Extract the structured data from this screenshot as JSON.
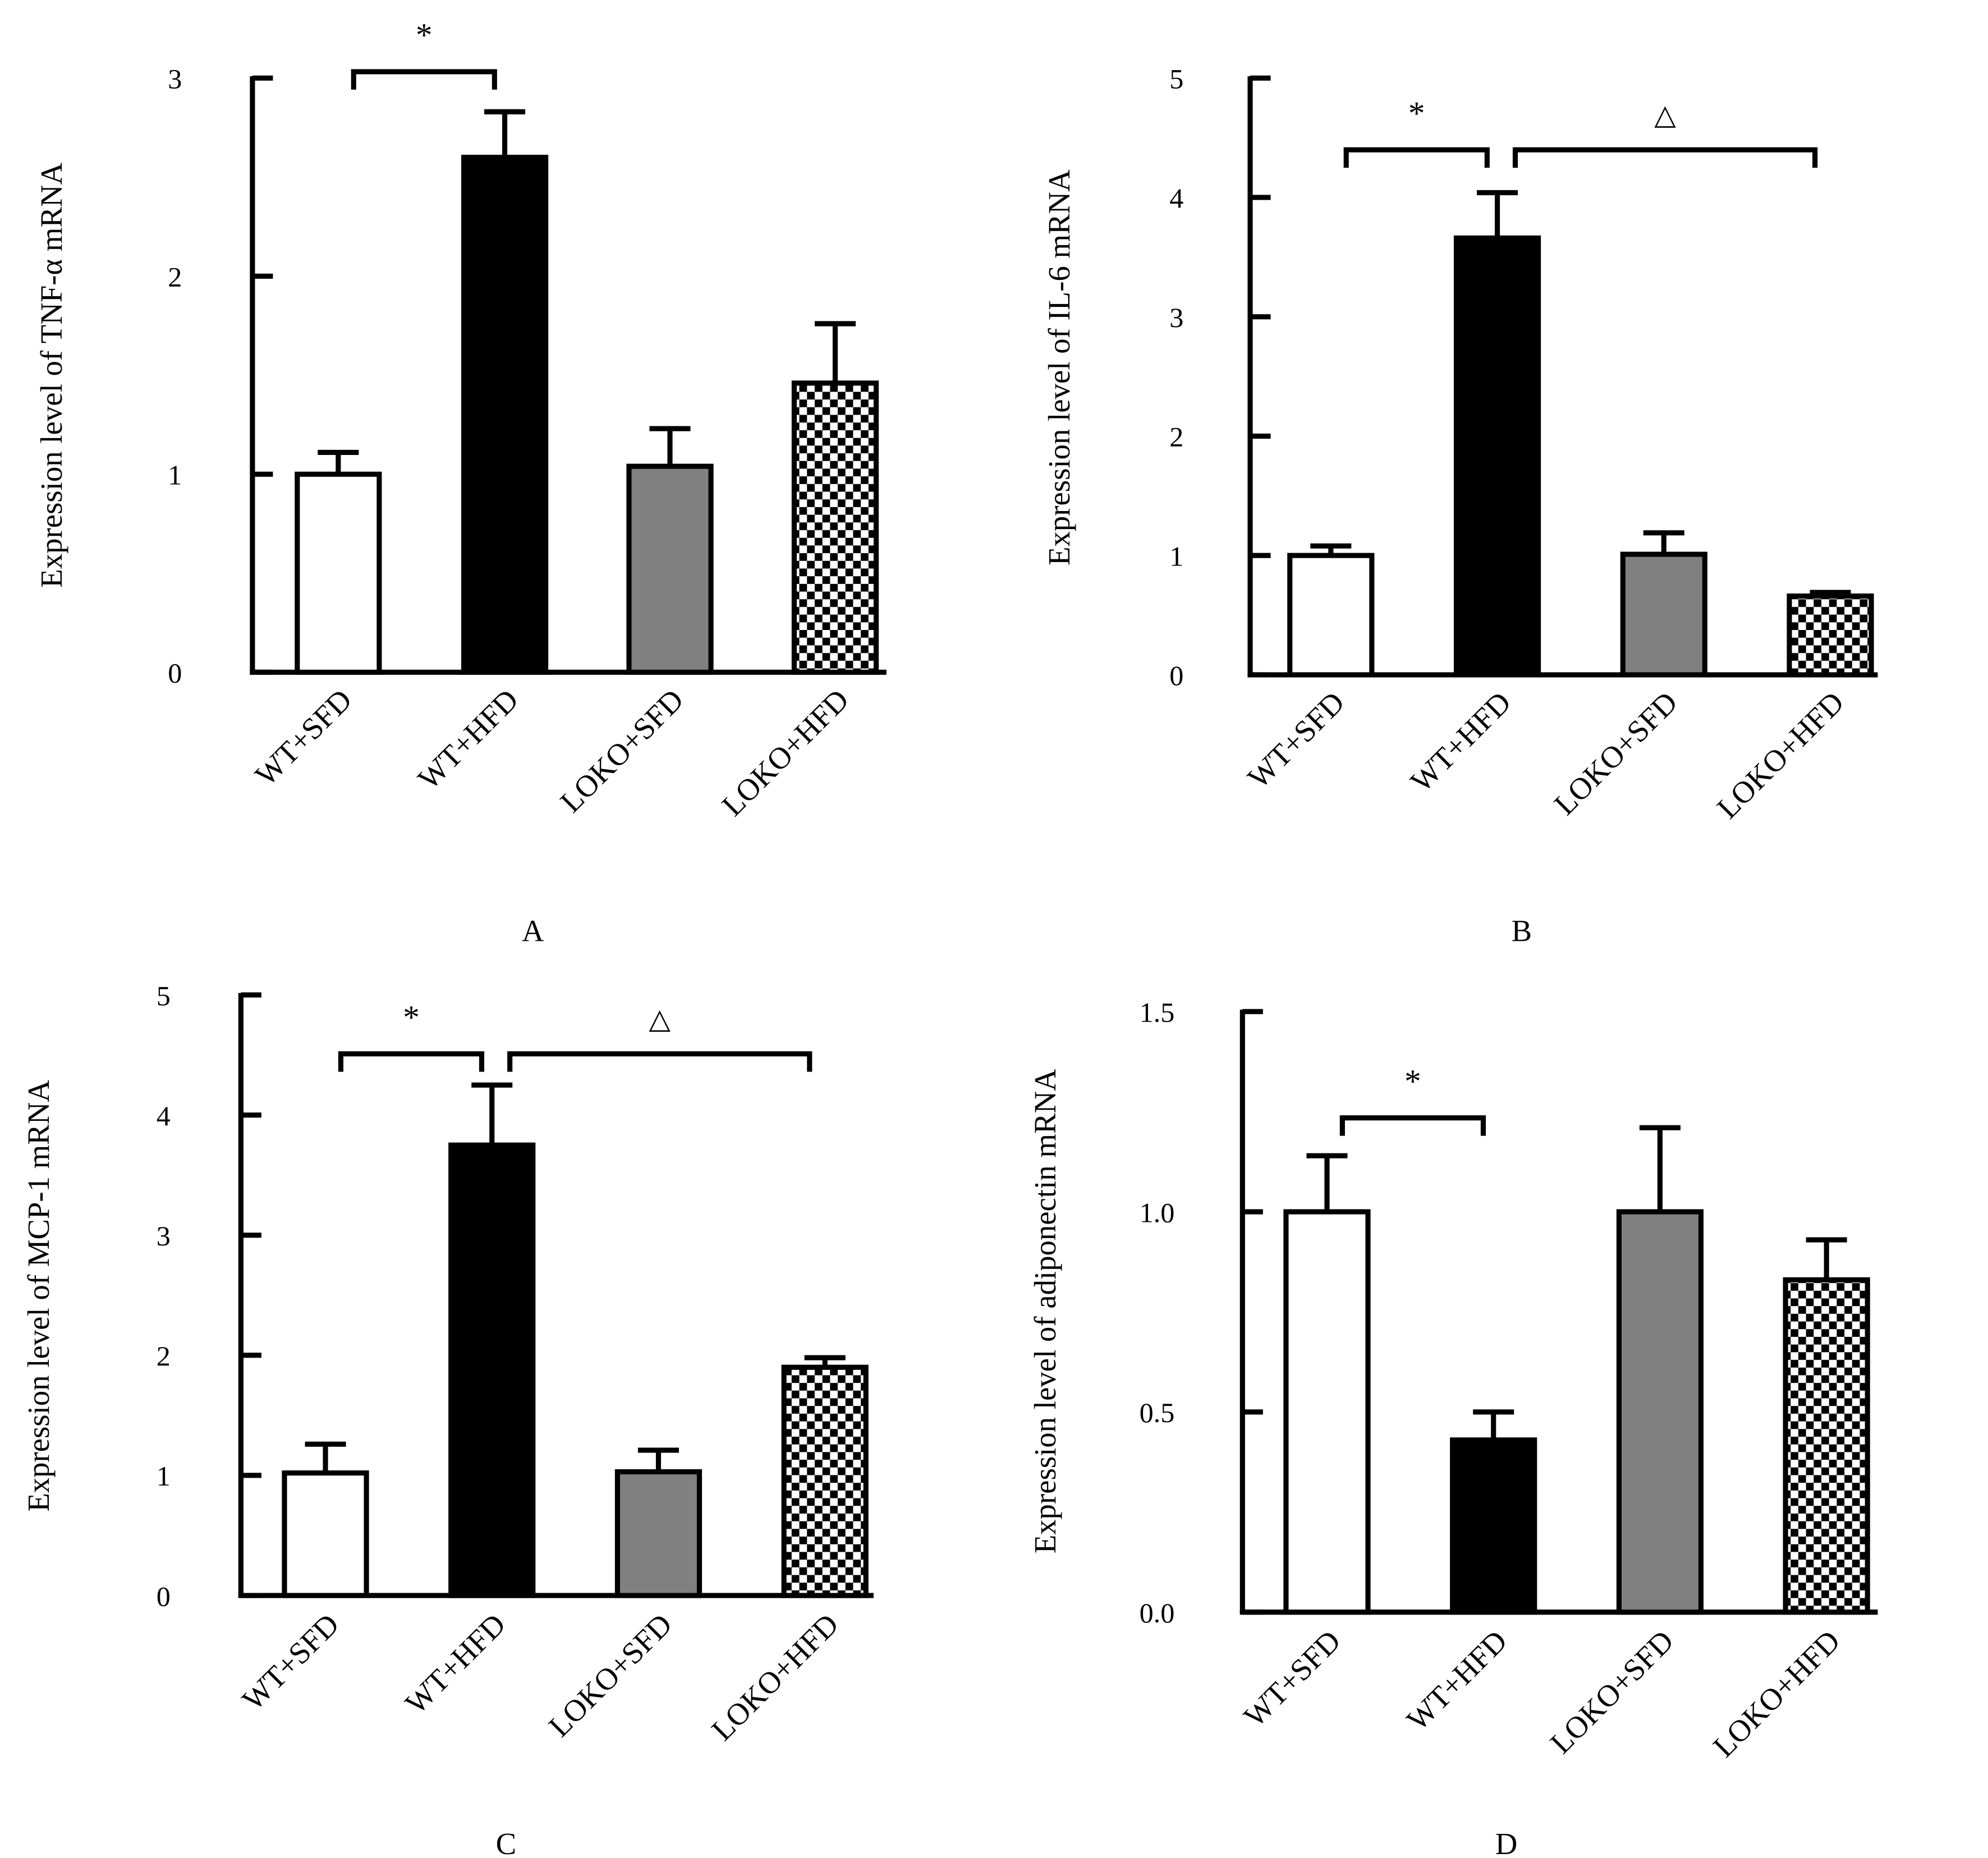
{
  "chart_data": [
    {
      "type": "bar",
      "panel_label": "A",
      "ylabel": "Expression level of TNF-α mRNA",
      "categories": [
        "WT+SFD",
        "WT+HFD",
        "LOKO+SFD",
        "LOKO+HFD"
      ],
      "values": [
        1.0,
        2.6,
        1.04,
        1.46
      ],
      "errors": [
        0.11,
        0.23,
        0.19,
        0.3
      ],
      "ylim": [
        0,
        3
      ],
      "yticks": [
        "0",
        "1",
        "2",
        "3"
      ],
      "significance": [
        {
          "from": 0,
          "to": 1,
          "symbol": "*"
        }
      ]
    },
    {
      "type": "bar",
      "panel_label": "B",
      "ylabel": "Expression level of IL-6 mRNA",
      "categories": [
        "WT+SFD",
        "WT+HFD",
        "LOKO+SFD",
        "LOKO+HFD"
      ],
      "values": [
        1.0,
        3.66,
        1.01,
        0.66
      ],
      "errors": [
        0.08,
        0.38,
        0.18,
        0.03
      ],
      "ylim": [
        0,
        5
      ],
      "yticks": [
        "0",
        "1",
        "2",
        "3",
        "4",
        "5"
      ],
      "significance": [
        {
          "from": 0,
          "to": 1,
          "symbol": "*"
        },
        {
          "from": 1,
          "to": 3,
          "symbol": "△"
        }
      ]
    },
    {
      "type": "bar",
      "panel_label": "C",
      "ylabel": "Expression level of MCP-1 mRNA",
      "categories": [
        "WT+SFD",
        "WT+HFD",
        "LOKO+SFD",
        "LOKO+HFD"
      ],
      "values": [
        1.02,
        3.75,
        1.03,
        1.9
      ],
      "errors": [
        0.24,
        0.5,
        0.18,
        0.08
      ],
      "ylim": [
        0,
        5
      ],
      "yticks": [
        "0",
        "1",
        "2",
        "3",
        "4",
        "5"
      ],
      "significance": [
        {
          "from": 0,
          "to": 1,
          "symbol": "*"
        },
        {
          "from": 1,
          "to": 3,
          "symbol": "△"
        }
      ]
    },
    {
      "type": "bar",
      "panel_label": "D",
      "ylabel": "Expression level of adiponectin mRNA",
      "categories": [
        "WT+SFD",
        "WT+HFD",
        "LOKO+SFD",
        "LOKO+HFD"
      ],
      "values": [
        1.0,
        0.43,
        1.0,
        0.83
      ],
      "errors": [
        0.14,
        0.07,
        0.21,
        0.1
      ],
      "ylim": [
        0,
        1.5
      ],
      "yticks": [
        "0.0",
        "0.5",
        "1.0",
        "1.5"
      ],
      "significance": [
        {
          "from": 0,
          "to": 1,
          "symbol": "*"
        }
      ]
    }
  ],
  "style": {
    "fills": [
      "#ffffff",
      "#000000",
      "#808080",
      "checkerboard"
    ],
    "axis_color": "#000000"
  }
}
